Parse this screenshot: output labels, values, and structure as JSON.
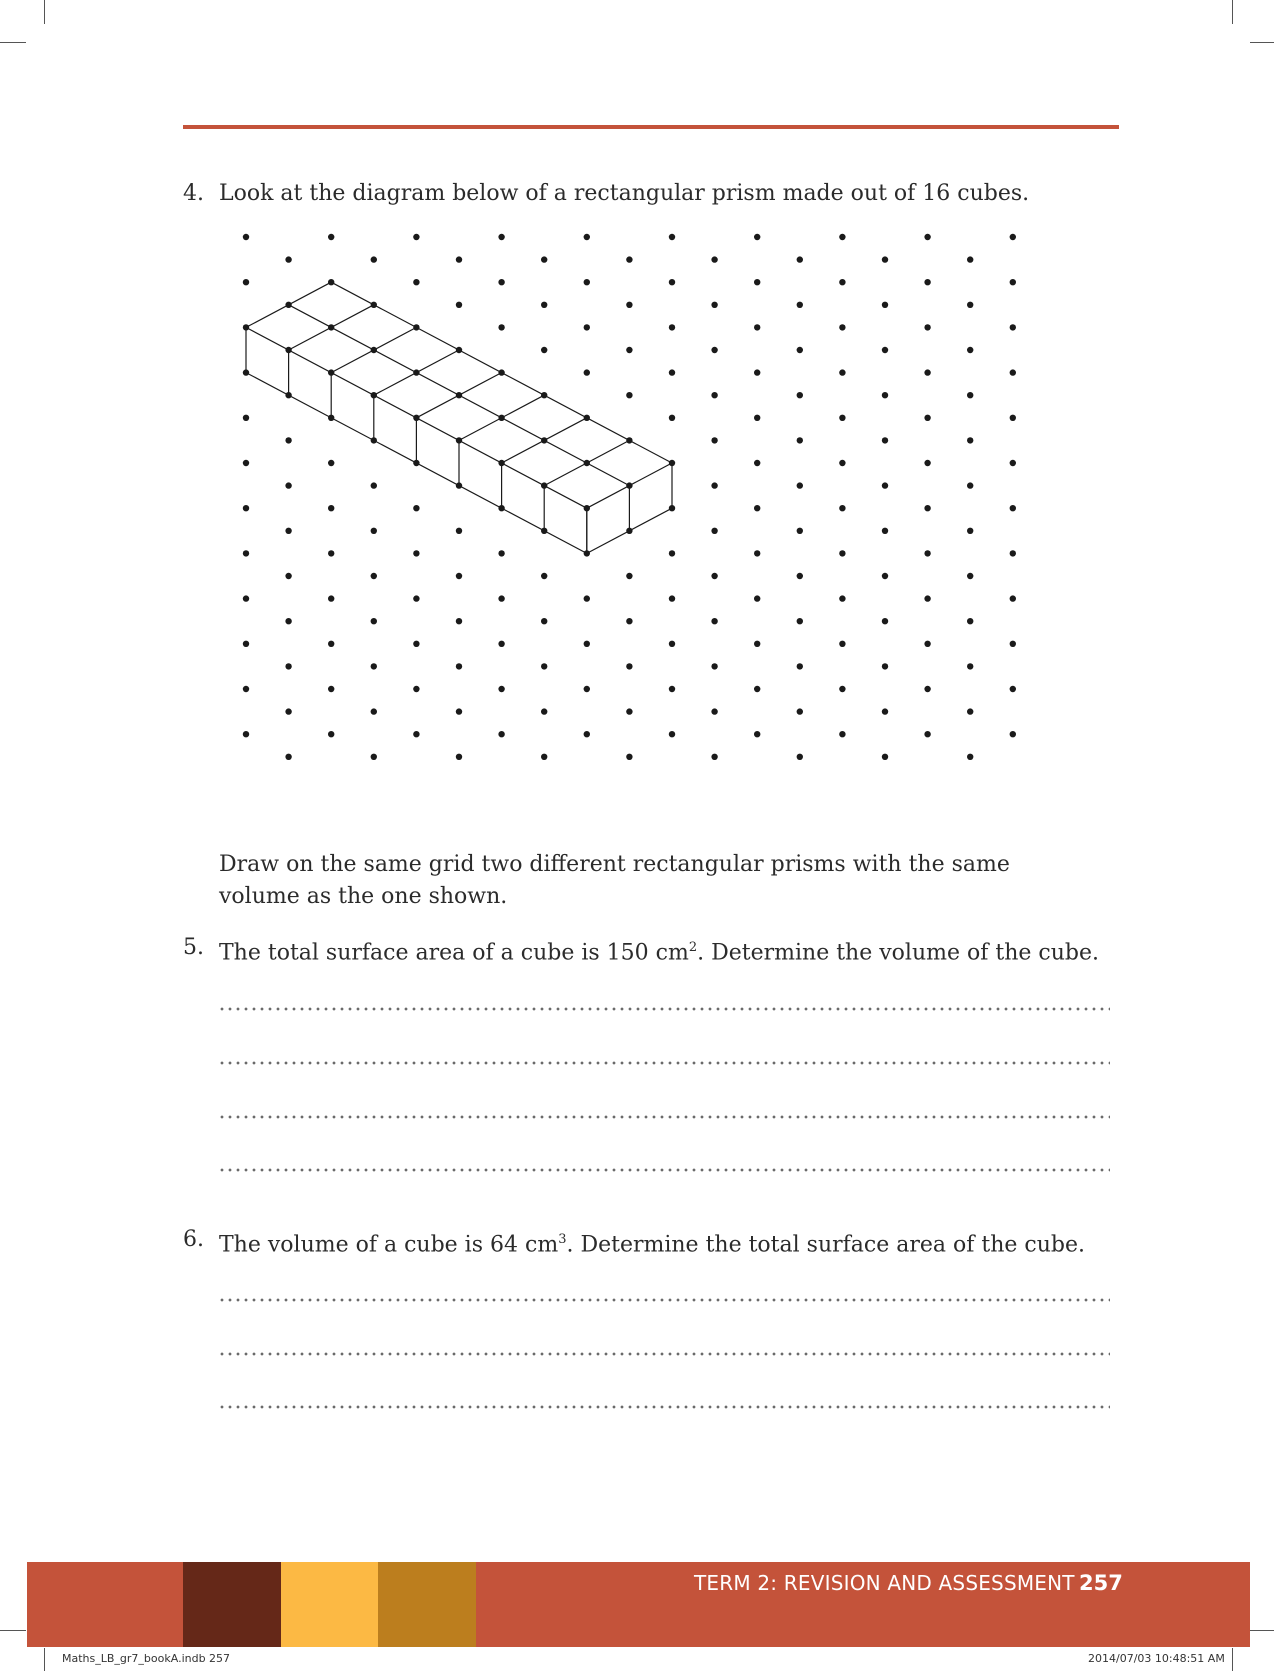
{
  "questions": [
    {
      "number": "4.",
      "text": "Look at the diagram below of a rectangular prism made out of 16 cubes.",
      "followup": "Draw on the same grid two different rectangular prisms with the same volume as the one shown."
    },
    {
      "number": "5.",
      "text_before": "The total surface area of a cube is 150 cm",
      "sup": "2",
      "text_after": ". Determine the volume of the cube.",
      "answer_lines": 4
    },
    {
      "number": "6.",
      "text_before": "The volume of a cube is 64 cm",
      "sup": "3",
      "text_after": ". Determine the total surface area of the cube.",
      "answer_lines": 3
    }
  ],
  "diagram": {
    "cube_count": 16,
    "rows": 2,
    "cols": 8,
    "dot_color": "#1a1a1a",
    "line_color": "#1a1a1a"
  },
  "footer": {
    "term_title": "TERM 2: REVISION AND ASSESSMENT",
    "page_number": "257",
    "bar_color": "#c4533a",
    "swatches": [
      "#652818",
      "#fcb944",
      "#bc7e1e"
    ]
  },
  "slug": {
    "file": "Maths_LB_gr7_bookA.indb   257",
    "timestamp": "2014/07/03   10:48:51 AM"
  }
}
